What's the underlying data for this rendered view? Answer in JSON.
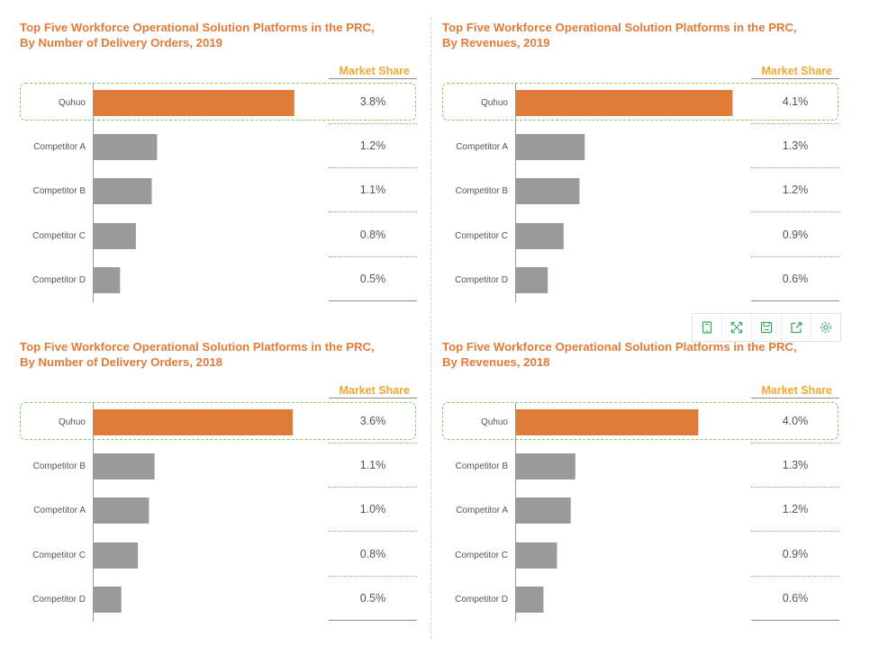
{
  "market_share_label": "Market Share",
  "chart_data": [
    {
      "type": "bar",
      "orientation": "horizontal",
      "title": "Top Five Workforce Operational Solution Platforms in the PRC, By Number of Delivery Orders, 2019",
      "title_lines": [
        "Top Five Workforce Operational Solution Platforms in the PRC,",
        "By Number of Delivery Orders, 2019"
      ],
      "categories": [
        "Quhuo",
        "Competitor A",
        "Competitor B",
        "Competitor C",
        "Competitor D"
      ],
      "values": [
        3.8,
        1.2,
        1.1,
        0.8,
        0.5
      ],
      "labels": [
        "3.8%",
        "1.2%",
        "1.1%",
        "0.8%",
        "0.5%"
      ],
      "xlim": [
        0,
        4.4
      ],
      "highlight_color": "#e07b39",
      "bar_color": "#9a9a9a"
    },
    {
      "type": "bar",
      "orientation": "horizontal",
      "title": "Top Five Workforce Operational Solution Platforms in the PRC, By Revenues, 2019",
      "title_lines": [
        "Top Five Workforce Operational Solution Platforms in the PRC,",
        "By Revenues, 2019"
      ],
      "categories": [
        "Quhuo",
        "Competitor A",
        "Competitor B",
        "Competitor C",
        "Competitor D"
      ],
      "values": [
        4.1,
        1.3,
        1.2,
        0.9,
        0.6
      ],
      "labels": [
        "4.1%",
        "1.3%",
        "1.2%",
        "0.9%",
        "0.6%"
      ],
      "xlim": [
        0,
        4.4
      ],
      "highlight_color": "#e07b39",
      "bar_color": "#9a9a9a"
    },
    {
      "type": "bar",
      "orientation": "horizontal",
      "title": "Top Five Workforce Operational Solution Platforms in the PRC, By Number of Delivery Orders, 2018",
      "title_lines": [
        "Top Five Workforce Operational Solution Platforms in the PRC,",
        "By Number of Delivery Orders, 2018"
      ],
      "categories": [
        "Quhuo",
        "Competitor B",
        "Competitor A",
        "Competitor C",
        "Competitor D"
      ],
      "values": [
        3.6,
        1.1,
        1.0,
        0.8,
        0.5
      ],
      "labels": [
        "3.6%",
        "1.1%",
        "1.0%",
        "0.8%",
        "0.5%"
      ],
      "xlim": [
        0,
        4.2
      ],
      "highlight_color": "#e07b39",
      "bar_color": "#9a9a9a"
    },
    {
      "type": "bar",
      "orientation": "horizontal",
      "title": "Top Five Workforce Operational Solution Platforms in the PRC, By Revenues, 2018",
      "title_lines": [
        "Top Five Workforce Operational Solution Platforms in the PRC,",
        "By Revenues, 2018"
      ],
      "categories": [
        "Quhuo",
        "Competitor B",
        "Competitor A",
        "Competitor C",
        "Competitor D"
      ],
      "values": [
        4.0,
        1.3,
        1.2,
        0.9,
        0.6
      ],
      "labels": [
        "4.0%",
        "1.3%",
        "1.2%",
        "0.9%",
        "0.6%"
      ],
      "xlim": [
        0,
        5.1
      ],
      "highlight_color": "#e07b39",
      "bar_color": "#9a9a9a"
    }
  ],
  "toolbar": {
    "icons": [
      "tablet-icon",
      "expand-icon",
      "save-icon",
      "share-icon",
      "settings-icon"
    ],
    "accent": "#3aa867"
  }
}
